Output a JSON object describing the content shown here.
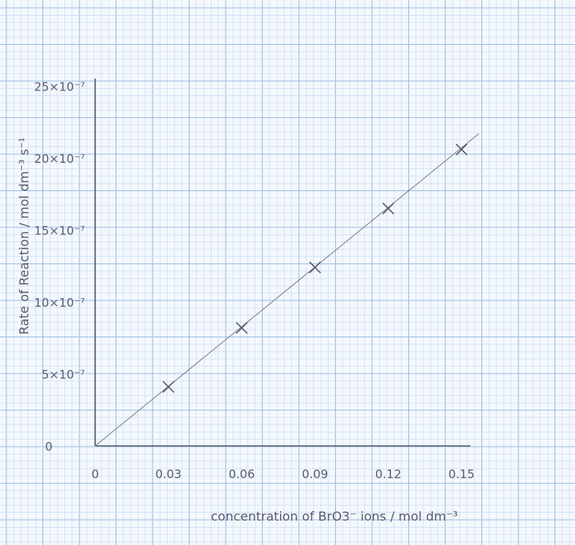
{
  "chart_data": {
    "type": "scatter",
    "title": "",
    "xlabel": "concentration of BrO3⁻ ions / mol dm⁻³",
    "ylabel": "Rate of Reaction / mol dm⁻³ s⁻¹",
    "x_ticks": [
      "0",
      "0.03",
      "0.06",
      "0.09",
      "0.12",
      "0.15"
    ],
    "y_ticks": [
      "0",
      "5×10⁻⁷",
      "10×10⁻⁷",
      "15×10⁻⁷",
      "20×10⁻⁷",
      "25×10⁻⁷"
    ],
    "xlim": [
      0,
      0.15
    ],
    "ylim": [
      0,
      2.5e-06
    ],
    "grid": true,
    "points": [
      {
        "x": 0.03,
        "y": 4.1e-07
      },
      {
        "x": 0.06,
        "y": 8.2e-07
      },
      {
        "x": 0.09,
        "y": 1.24e-06
      },
      {
        "x": 0.12,
        "y": 1.65e-06
      },
      {
        "x": 0.15,
        "y": 2.06e-06
      }
    ],
    "best_fit": {
      "from": [
        0,
        0
      ],
      "to": [
        0.15,
        2.06e-06
      ]
    },
    "marker": "x",
    "colors": {
      "paper": "#f4f8fd",
      "grid_minor": "#c6d8ee",
      "grid_major": "#9fbde0",
      "ink": "#5a5a6e"
    }
  }
}
